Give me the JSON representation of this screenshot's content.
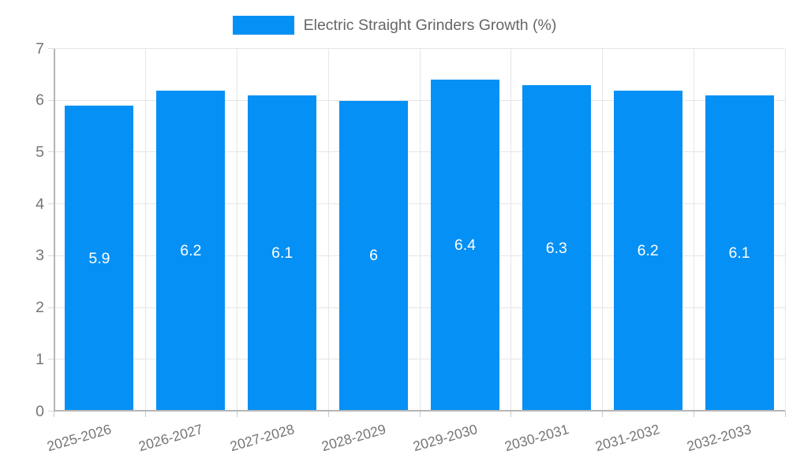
{
  "legend": {
    "label": "Electric Straight Grinders Growth (%)"
  },
  "colors": {
    "bar": "#0590f5",
    "grid": "#e6e6e6",
    "axis": "#b5b5b5",
    "text": "#757575",
    "legend_text": "#666666",
    "value_label": "#ffffff"
  },
  "chart_data": {
    "type": "bar",
    "title": "Electric Straight Grinders Growth (%)",
    "categories": [
      "2025-2026",
      "2026-2027",
      "2027-2028",
      "2028-2029",
      "2029-2030",
      "2030-2031",
      "2031-2032",
      "2032-2033"
    ],
    "values": [
      5.9,
      6.2,
      6.1,
      6,
      6.4,
      6.3,
      6.2,
      6.1
    ],
    "xlabel": "",
    "ylabel": "",
    "ylim": [
      0,
      7
    ],
    "yticks": [
      0,
      1,
      2,
      3,
      4,
      5,
      6,
      7
    ],
    "grid": true,
    "legend_position": "top",
    "bar_label_position": "center"
  }
}
